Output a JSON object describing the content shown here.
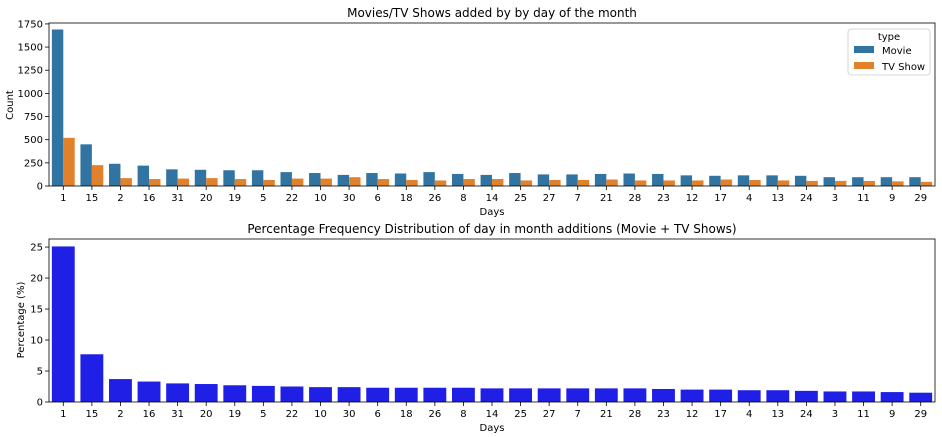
{
  "chart_data": [
    {
      "type": "bar",
      "title": "Movies/TV Shows added by by day of the month",
      "xlabel": "Days",
      "ylabel": "Count",
      "ylim": [
        0,
        1760
      ],
      "yticks": [
        0,
        250,
        500,
        750,
        1000,
        1250,
        1500,
        1750
      ],
      "grid": false,
      "legend": {
        "title": "type",
        "placement": "top-right"
      },
      "categories": [
        "1",
        "15",
        "2",
        "16",
        "31",
        "20",
        "19",
        "5",
        "22",
        "10",
        "30",
        "6",
        "18",
        "26",
        "8",
        "14",
        "25",
        "27",
        "7",
        "21",
        "28",
        "23",
        "12",
        "17",
        "4",
        "13",
        "24",
        "3",
        "11",
        "9",
        "29"
      ],
      "series": [
        {
          "name": "Movie",
          "color": "#3274a1",
          "values": [
            1690,
            450,
            240,
            220,
            180,
            175,
            170,
            170,
            150,
            140,
            120,
            140,
            135,
            150,
            130,
            120,
            140,
            125,
            125,
            130,
            135,
            130,
            115,
            110,
            115,
            115,
            110,
            95,
            95,
            95,
            95
          ]
        },
        {
          "name": "TV Show",
          "color": "#e1812c",
          "values": [
            520,
            225,
            85,
            75,
            80,
            85,
            75,
            65,
            80,
            80,
            95,
            75,
            65,
            60,
            75,
            75,
            60,
            65,
            65,
            70,
            60,
            60,
            60,
            70,
            65,
            60,
            55,
            55,
            55,
            50,
            45
          ]
        }
      ]
    },
    {
      "type": "bar",
      "title": "Percentage Frequency Distribution of day in month additions (Movie + TV Shows)",
      "xlabel": "Days",
      "ylabel": "Percentage (%)",
      "ylim": [
        0,
        26.3
      ],
      "yticks": [
        0,
        5,
        10,
        15,
        20,
        25
      ],
      "grid": false,
      "categories": [
        "1",
        "15",
        "2",
        "16",
        "31",
        "20",
        "19",
        "5",
        "22",
        "10",
        "30",
        "6",
        "18",
        "26",
        "8",
        "14",
        "25",
        "27",
        "7",
        "21",
        "28",
        "23",
        "12",
        "17",
        "4",
        "13",
        "24",
        "3",
        "11",
        "9",
        "29"
      ],
      "series": [
        {
          "name": "",
          "color": "#1f1fe6",
          "values": [
            25.1,
            7.7,
            3.7,
            3.3,
            3.0,
            2.9,
            2.7,
            2.6,
            2.5,
            2.4,
            2.4,
            2.3,
            2.3,
            2.3,
            2.3,
            2.2,
            2.2,
            2.2,
            2.2,
            2.2,
            2.2,
            2.1,
            2.0,
            2.0,
            1.9,
            1.9,
            1.8,
            1.7,
            1.7,
            1.6,
            1.5
          ]
        }
      ]
    }
  ]
}
